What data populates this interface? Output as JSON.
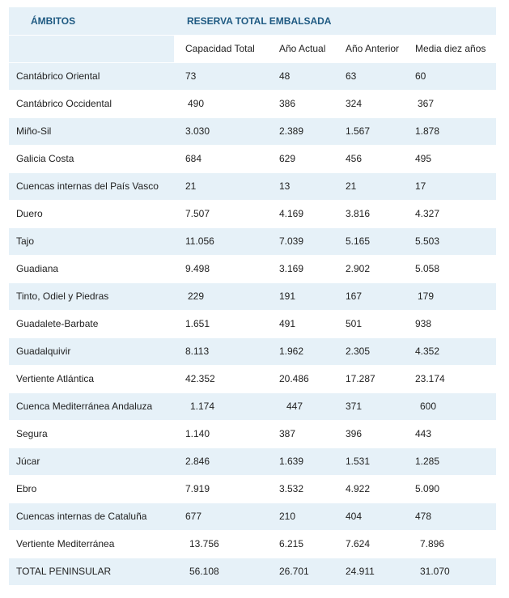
{
  "header": {
    "ambitos": "ÁMBITOS",
    "reserva": "RESERVA TOTAL EMBALSADA",
    "columns": [
      "Capacidad Total",
      "Año Actual",
      "Año Anterior",
      "Media diez años"
    ]
  },
  "colors": {
    "header_text": "#1f5a82",
    "stripe": "#e6f1f8"
  },
  "rows": [
    {
      "name": "Cantábrico Oriental",
      "values": [
        "73",
        "48",
        "63",
        "60"
      ]
    },
    {
      "name": "Cantábrico Occidental",
      "values": [
        "490",
        "386",
        "324",
        "367"
      ]
    },
    {
      "name": "Miño-Sil",
      "values": [
        "3.030",
        "2.389",
        "1.567",
        "1.878"
      ]
    },
    {
      "name": "Galicia Costa",
      "values": [
        "684",
        "629",
        "456",
        "495"
      ]
    },
    {
      "name": "Cuencas internas del País Vasco",
      "values": [
        "21",
        "13",
        "21",
        "17"
      ]
    },
    {
      "name": "Duero",
      "values": [
        "7.507",
        "4.169",
        "3.816",
        "4.327"
      ]
    },
    {
      "name": "Tajo",
      "values": [
        "11.056",
        "7.039",
        "5.165",
        "5.503"
      ]
    },
    {
      "name": "Guadiana",
      "values": [
        "9.498",
        "3.169",
        "2.902",
        "5.058"
      ]
    },
    {
      "name": "Tinto, Odiel y Piedras",
      "values": [
        "229",
        "191",
        "167",
        "179"
      ]
    },
    {
      "name": "Guadalete-Barbate",
      "values": [
        "1.651",
        "491",
        "501",
        "938"
      ]
    },
    {
      "name": "Guadalquivir",
      "values": [
        "8.113",
        "1.962",
        "2.305",
        "4.352"
      ]
    },
    {
      "name": "Vertiente Atlántica",
      "values": [
        "42.352",
        "20.486",
        "17.287",
        "23.174"
      ]
    },
    {
      "name": "Cuenca Mediterránea Andaluza",
      "values": [
        "1.174",
        "447",
        "371",
        "600"
      ]
    },
    {
      "name": "Segura",
      "values": [
        "1.140",
        "387",
        "396",
        "443"
      ]
    },
    {
      "name": "Júcar",
      "values": [
        "2.846",
        "1.639",
        "1.531",
        "1.285"
      ]
    },
    {
      "name": "Ebro",
      "values": [
        "7.919",
        "3.532",
        "4.922",
        "5.090"
      ]
    },
    {
      "name": "Cuencas internas de Cataluña",
      "values": [
        "677",
        "210",
        "404",
        "478"
      ]
    },
    {
      "name": "Vertiente Mediterránea",
      "values": [
        "13.756",
        "6.215",
        "7.624",
        "7.896"
      ]
    },
    {
      "name": "TOTAL PENINSULAR",
      "values": [
        "56.108",
        "26.701",
        "24.911",
        "31.070"
      ]
    }
  ]
}
